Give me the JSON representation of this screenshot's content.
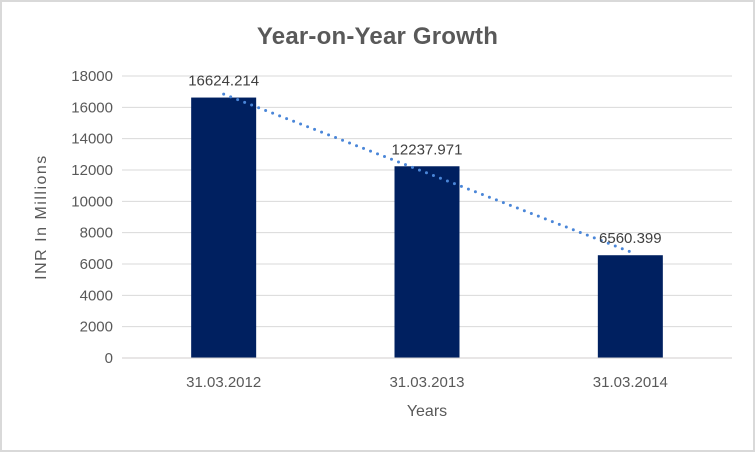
{
  "chart_data": {
    "type": "bar",
    "title": "Year-on-Year Growth",
    "categories": [
      "31.03.2012",
      "31.03.2013",
      "31.03.2014"
    ],
    "values": [
      16624.214,
      12237.971,
      6560.399
    ],
    "data_labels": [
      "16624.214",
      "12237.971",
      "6560.399"
    ],
    "xlabel": "Years",
    "ylabel": "INR In Millions",
    "ylim": [
      0,
      18000
    ],
    "yticks": [
      0,
      2000,
      4000,
      6000,
      8000,
      10000,
      12000,
      14000,
      16000,
      18000
    ],
    "grid": "horizontal",
    "legend": "none",
    "trendline": {
      "type": "linear",
      "style": "dotted"
    },
    "colors": {
      "bar": "#002060",
      "trendline": "#4a86d8",
      "gridline": "#d9d9d9",
      "axis_line": "#d0cece",
      "tick_text": "#595959",
      "data_label_text": "#404040",
      "title_text": "#595959",
      "border": "#d9d9d9",
      "background": "#ffffff"
    }
  }
}
